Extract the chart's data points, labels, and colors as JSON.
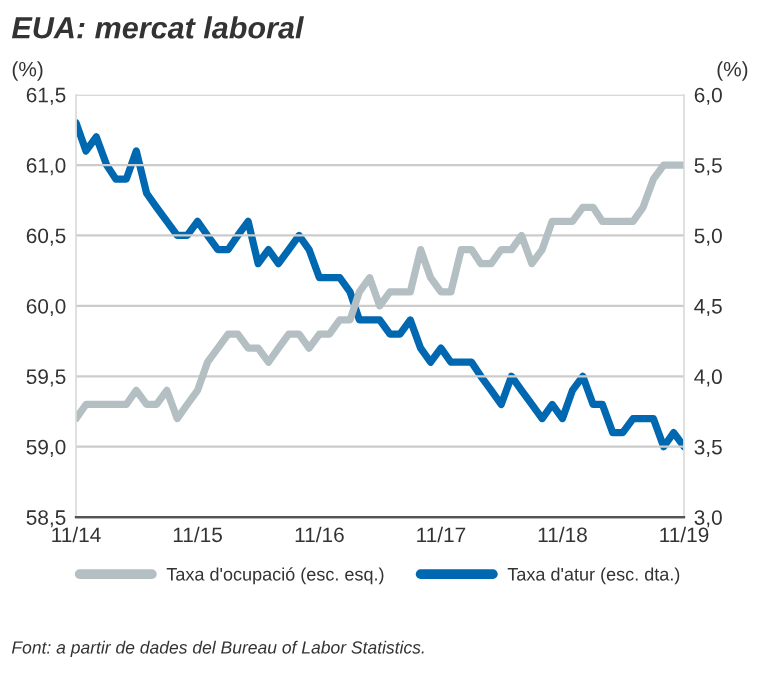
{
  "chart_data": {
    "type": "line",
    "title": "EUA: mercat laboral",
    "ylabel": "(%)",
    "y2label": "(%)",
    "x": [
      "2014-11",
      "2014-12",
      "2015-01",
      "2015-02",
      "2015-03",
      "2015-04",
      "2015-05",
      "2015-06",
      "2015-07",
      "2015-08",
      "2015-09",
      "2015-10",
      "2015-11",
      "2015-12",
      "2016-01",
      "2016-02",
      "2016-03",
      "2016-04",
      "2016-05",
      "2016-06",
      "2016-07",
      "2016-08",
      "2016-09",
      "2016-10",
      "2016-11",
      "2016-12",
      "2017-01",
      "2017-02",
      "2017-03",
      "2017-04",
      "2017-05",
      "2017-06",
      "2017-07",
      "2017-08",
      "2017-09",
      "2017-10",
      "2017-11",
      "2017-12",
      "2018-01",
      "2018-02",
      "2018-03",
      "2018-04",
      "2018-05",
      "2018-06",
      "2018-07",
      "2018-08",
      "2018-09",
      "2018-10",
      "2018-11",
      "2018-12",
      "2019-01",
      "2019-02",
      "2019-03",
      "2019-04",
      "2019-05",
      "2019-06",
      "2019-07",
      "2019-08",
      "2019-09",
      "2019-10",
      "2019-11"
    ],
    "series": [
      {
        "name": "Taxa d'ocupació (esc. esq.)",
        "color": "#b4bfc3",
        "values": [
          59.2,
          59.3,
          59.3,
          59.3,
          59.3,
          59.3,
          59.4,
          59.3,
          59.3,
          59.4,
          59.2,
          59.3,
          59.4,
          59.6,
          59.7,
          59.8,
          59.8,
          59.7,
          59.7,
          59.6,
          59.7,
          59.8,
          59.8,
          59.7,
          59.8,
          59.8,
          59.9,
          59.9,
          60.1,
          60.2,
          60.0,
          60.1,
          60.1,
          60.1,
          60.4,
          60.2,
          60.1,
          60.1,
          60.4,
          60.4,
          60.3,
          60.3,
          60.4,
          60.4,
          60.5,
          60.3,
          60.4,
          60.6,
          60.6,
          60.6,
          60.7,
          60.7,
          60.6,
          60.6,
          60.6,
          60.6,
          60.7,
          60.9,
          61.0,
          61.0,
          61.0
        ]
      },
      {
        "name": "Taxa d'atur (esc. dta.)",
        "color": "#0068b0",
        "axis": "y2",
        "values": [
          5.8,
          5.6,
          5.7,
          5.5,
          5.4,
          5.4,
          5.6,
          5.3,
          5.2,
          5.1,
          5.0,
          5.0,
          5.1,
          5.0,
          4.9,
          4.9,
          5.0,
          5.1,
          4.8,
          4.9,
          4.8,
          4.9,
          5.0,
          4.9,
          4.7,
          4.7,
          4.7,
          4.6,
          4.4,
          4.4,
          4.4,
          4.3,
          4.3,
          4.4,
          4.2,
          4.1,
          4.2,
          4.1,
          4.1,
          4.1,
          4.0,
          3.9,
          3.8,
          4.0,
          3.9,
          3.8,
          3.7,
          3.8,
          3.7,
          3.9,
          4.0,
          3.8,
          3.8,
          3.6,
          3.6,
          3.7,
          3.7,
          3.7,
          3.5,
          3.6,
          3.5
        ]
      }
    ],
    "xlim": [
      "2014-11",
      "2019-11"
    ],
    "xticks": [
      {
        "value": "2014-11",
        "label": "11/14"
      },
      {
        "value": "2015-11",
        "label": "11/15"
      },
      {
        "value": "2016-11",
        "label": "11/16"
      },
      {
        "value": "2017-11",
        "label": "11/17"
      },
      {
        "value": "2018-11",
        "label": "11/18"
      },
      {
        "value": "2019-11",
        "label": "11/19"
      }
    ],
    "ylim": [
      58.5,
      61.5
    ],
    "yticks": [
      {
        "value": 58.5,
        "label": "58,5"
      },
      {
        "value": 59.0,
        "label": "59,0"
      },
      {
        "value": 59.5,
        "label": "59,5"
      },
      {
        "value": 60.0,
        "label": "60,0"
      },
      {
        "value": 60.5,
        "label": "60,5"
      },
      {
        "value": 61.0,
        "label": "61,0"
      },
      {
        "value": 61.5,
        "label": "61,5"
      }
    ],
    "y2lim": [
      3.0,
      6.0
    ],
    "y2ticks": [
      {
        "value": 3.0,
        "label": "3,0"
      },
      {
        "value": 3.5,
        "label": "3,5"
      },
      {
        "value": 4.0,
        "label": "4,0"
      },
      {
        "value": 4.5,
        "label": "4,5"
      },
      {
        "value": 5.0,
        "label": "5,0"
      },
      {
        "value": 5.5,
        "label": "5,5"
      },
      {
        "value": 6.0,
        "label": "6,0"
      }
    ],
    "grid": "y",
    "legend": "bottom",
    "marker": "none",
    "line_style": "solid",
    "annotations": [
      "Font: a partir de dades del Bureau of Labor Statistics."
    ]
  }
}
